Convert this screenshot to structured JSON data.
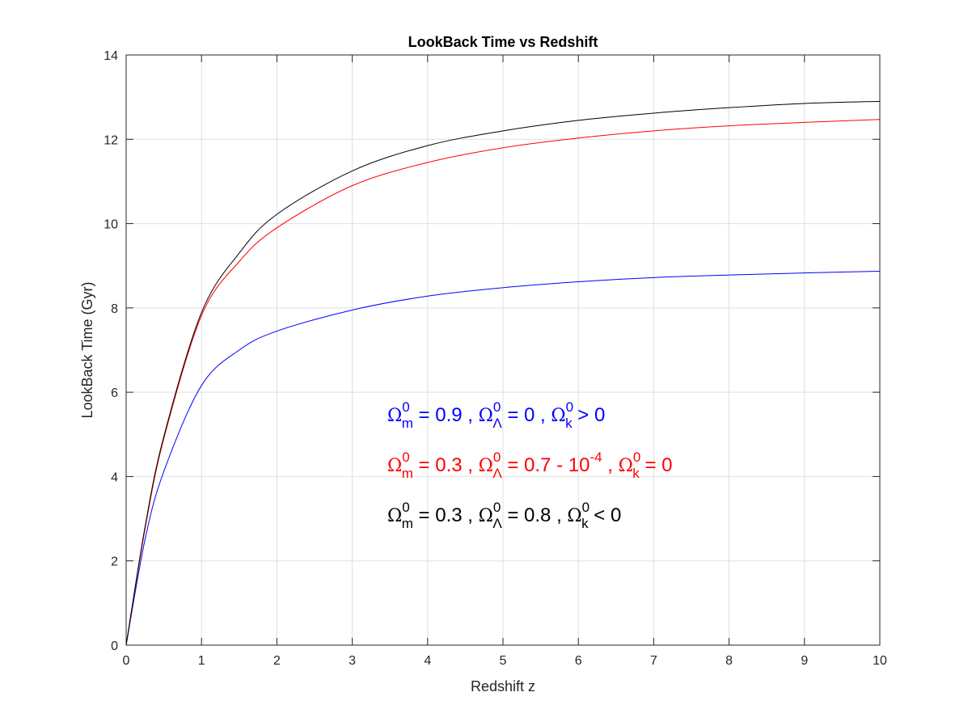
{
  "chart_data": {
    "type": "line",
    "title": "LookBack Time vs Redshift",
    "xlabel": "Redshift z",
    "ylabel": "LookBack Time (Gyr)",
    "xlim": [
      0,
      10
    ],
    "ylim": [
      0,
      14
    ],
    "xticks": [
      0,
      1,
      2,
      3,
      4,
      5,
      6,
      7,
      8,
      9,
      10
    ],
    "yticks": [
      0,
      2,
      4,
      6,
      8,
      10,
      12,
      14
    ],
    "grid": true,
    "x": [
      0,
      0.25,
      0.5,
      1,
      1.5,
      2,
      3,
      4,
      5,
      6,
      7,
      8,
      9,
      10
    ],
    "series": [
      {
        "color": "#0000ff",
        "values": [
          0,
          2.5,
          4.12,
          6.16,
          7.0,
          7.45,
          7.95,
          8.28,
          8.48,
          8.62,
          8.72,
          8.78,
          8.83,
          8.87
        ]
      },
      {
        "color": "#ff0000",
        "values": [
          0,
          2.75,
          4.9,
          7.82,
          9.1,
          9.9,
          10.9,
          11.45,
          11.8,
          12.03,
          12.2,
          12.32,
          12.4,
          12.47
        ]
      },
      {
        "color": "#000000",
        "values": [
          0,
          2.8,
          4.95,
          7.89,
          9.3,
          10.22,
          11.25,
          11.85,
          12.2,
          12.45,
          12.62,
          12.75,
          12.85,
          12.9
        ]
      }
    ],
    "annotations": [
      {
        "color": "#0000ff",
        "omega": "Ω",
        "sup": "0",
        "m": "m",
        "lambda": "Λ",
        "k": "k",
        "p1": " = 0.9 , ",
        "p2": " = 0 , ",
        "p3": " > 0",
        "exp": ""
      },
      {
        "color": "#ff0000",
        "omega": "Ω",
        "sup": "0",
        "m": "m",
        "lambda": "Λ",
        "k": "k",
        "p1": " = 0.3 , ",
        "p2": " = 0.7 - 10",
        "exp": "-4",
        "p2b": " , ",
        "p3": " = 0"
      },
      {
        "color": "#000000",
        "omega": "Ω",
        "sup": "0",
        "m": "m",
        "lambda": "Λ",
        "k": "k",
        "p1": " = 0.3 , ",
        "p2": " = 0.8 , ",
        "p3": " < 0",
        "exp": ""
      }
    ]
  }
}
